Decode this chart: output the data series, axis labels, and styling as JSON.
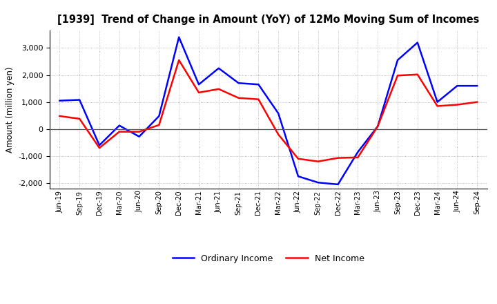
{
  "title": "[1939]  Trend of Change in Amount (YoY) of 12Mo Moving Sum of Incomes",
  "ylabel": "Amount (million yen)",
  "x_labels": [
    "Jun-19",
    "Sep-19",
    "Dec-19",
    "Mar-20",
    "Jun-20",
    "Sep-20",
    "Dec-20",
    "Mar-21",
    "Jun-21",
    "Sep-21",
    "Dec-21",
    "Mar-22",
    "Jun-22",
    "Sep-22",
    "Dec-22",
    "Mar-23",
    "Jun-23",
    "Sep-23",
    "Dec-23",
    "Mar-24",
    "Jun-24",
    "Sep-24"
  ],
  "ordinary_income": [
    1050,
    1080,
    -600,
    130,
    -280,
    480,
    3400,
    1650,
    2250,
    1700,
    1650,
    580,
    -1750,
    -1980,
    -2050,
    -850,
    100,
    2550,
    3200,
    1000,
    1600,
    1600
  ],
  "net_income": [
    480,
    380,
    -700,
    -100,
    -100,
    150,
    2550,
    1350,
    1480,
    1150,
    1100,
    -200,
    -1100,
    -1200,
    -1070,
    -1050,
    100,
    1980,
    2020,
    850,
    900,
    1000
  ],
  "line_color_ordinary": "#0000FF",
  "line_color_net": "#FF0000",
  "line_width": 1.8,
  "ylim": [
    -2200,
    3650
  ],
  "yticks": [
    -2000,
    -1000,
    0,
    1000,
    2000,
    3000
  ],
  "background_color": "#FFFFFF",
  "grid_color": "#999999",
  "legend_labels": [
    "Ordinary Income",
    "Net Income"
  ]
}
